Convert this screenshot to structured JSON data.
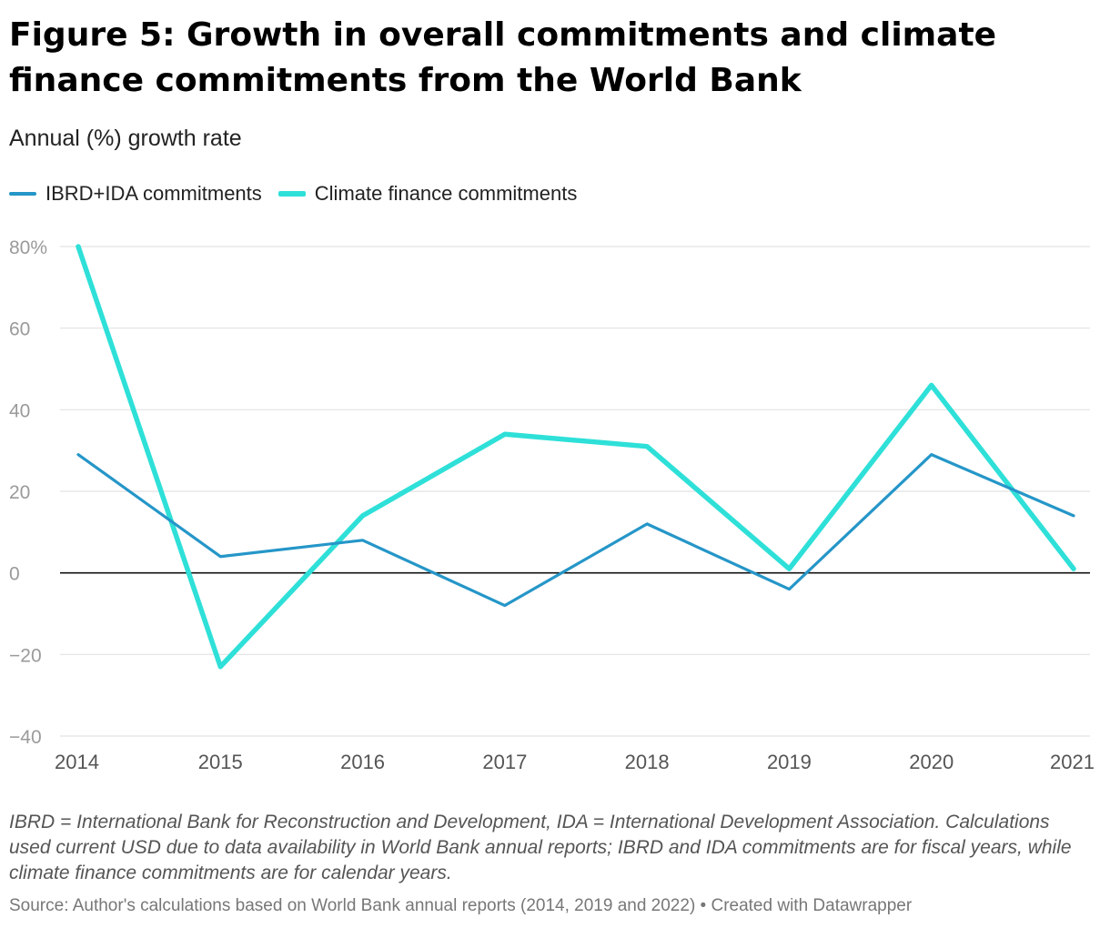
{
  "header": {
    "title": "Figure 5: Growth in overall commitments and climate finance commitments from the World Bank",
    "subtitle": "Annual (%) growth rate"
  },
  "footer": {
    "notes": "IBRD = International Bank for Reconstruction and Development, IDA = International Development Association. Calculations used current USD due to data availability in World Bank annual reports; IBRD and IDA commitments are for fiscal years, while climate finance commitments are for calendar years.",
    "source": "Source: Author's calculations based on World Bank annual reports (2014, 2019 and 2022) • Created with Datawrapper"
  },
  "chart_data": {
    "type": "line",
    "title": "Figure 5: Growth in overall commitments and climate finance commitments from the World Bank",
    "subtitle": "Annual (%) growth rate",
    "x": [
      "2014",
      "2015",
      "2016",
      "2017",
      "2018",
      "2019",
      "2020",
      "2021"
    ],
    "ylim": [
      -40,
      80
    ],
    "yticks": [
      80,
      60,
      40,
      20,
      0,
      -20,
      -40
    ],
    "ytick_labels": [
      "80%",
      "60",
      "40",
      "20",
      "0",
      "−20",
      "−40"
    ],
    "grid": true,
    "legend_position": "top-left",
    "series": [
      {
        "name": "IBRD+IDA commitments",
        "color": "#2596c8",
        "values": [
          29,
          4,
          8,
          -8,
          12,
          -4,
          29,
          14
        ]
      },
      {
        "name": "Climate finance commitments",
        "color": "#2ee0d8",
        "values": [
          80,
          -23,
          14,
          34,
          31,
          1,
          46,
          1
        ]
      }
    ]
  }
}
